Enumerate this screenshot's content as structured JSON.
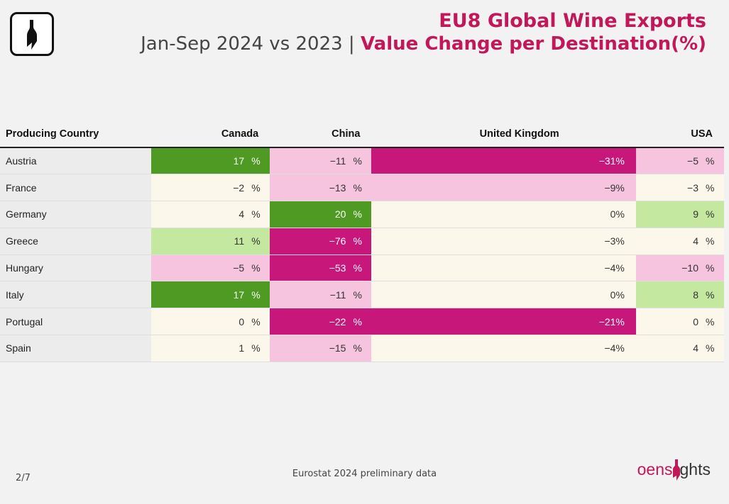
{
  "header": {
    "title": "EU8 Global Wine Exports",
    "subtitle_left": "Jan-Sep 2024 vs 2023 |",
    "subtitle_right": "Value Change per Destination(%)"
  },
  "chart_data": {
    "type": "table",
    "title": "EU8 Global Wine Exports",
    "subtitle": "Jan-Sep 2024 vs 2023 | Value Change per Destination(%)",
    "columns": [
      "Producing Country",
      "Canada",
      "China",
      "United Kingdom",
      "USA"
    ],
    "rows": [
      {
        "country": "Austria",
        "canada": 17,
        "china": -11,
        "uk": -31,
        "usa": -5
      },
      {
        "country": "France",
        "canada": -2,
        "china": -13,
        "uk": -9,
        "usa": -3
      },
      {
        "country": "Germany",
        "canada": 4,
        "china": 20,
        "uk": 0,
        "usa": 9
      },
      {
        "country": "Greece",
        "canada": 11,
        "china": -76,
        "uk": -3,
        "usa": 4
      },
      {
        "country": "Hungary",
        "canada": -5,
        "china": -53,
        "uk": -4,
        "usa": -10
      },
      {
        "country": "Italy",
        "canada": 17,
        "china": -11,
        "uk": 0,
        "usa": 8
      },
      {
        "country": "Portugal",
        "canada": 0,
        "china": -22,
        "uk": -21,
        "usa": 0
      },
      {
        "country": "Spain",
        "canada": 1,
        "china": -15,
        "uk": -4,
        "usa": 4
      }
    ],
    "unit": "%",
    "colors": {
      "strong_positive": "#4e9a22",
      "mild_positive": "#c5e8a0",
      "neutral": "#fbf7ea",
      "mild_negative": "#f6c4de",
      "strong_negative": "#c8177a"
    }
  },
  "footer": {
    "page": "2/7",
    "source": "Eurostat 2024 preliminary data",
    "brand_a": "oens",
    "brand_b": "ghts"
  },
  "watermark": "oensights"
}
